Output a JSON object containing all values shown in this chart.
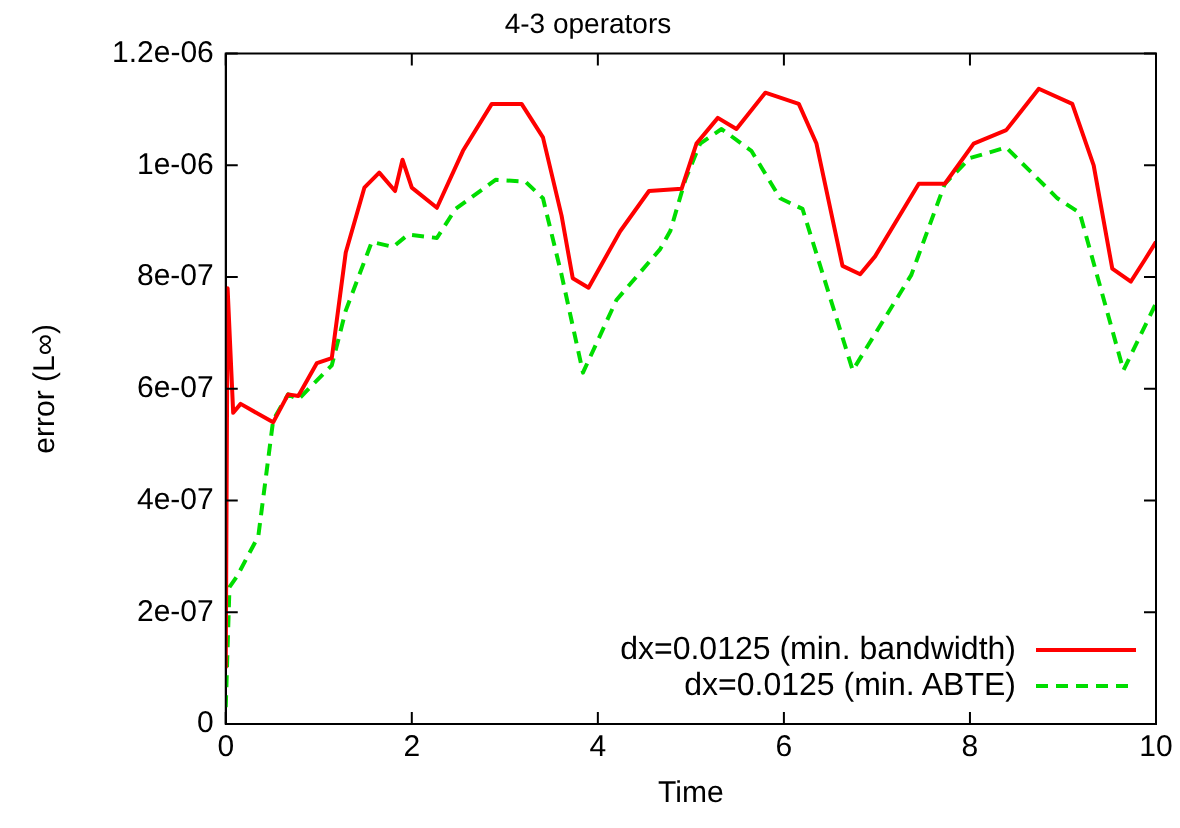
{
  "chart_data": {
    "type": "line",
    "title": "4-3 operators",
    "xlabel": "Time",
    "ylabel": "error (L∞)",
    "xlim": [
      0,
      10
    ],
    "xticks": [
      0,
      2,
      4,
      6,
      8,
      10
    ],
    "ylim": [
      0,
      1.2e-06
    ],
    "yticks": [
      {
        "value": 0,
        "label": "0"
      },
      {
        "value": 2e-07,
        "label": "2e-07"
      },
      {
        "value": 4e-07,
        "label": "4e-07"
      },
      {
        "value": 6e-07,
        "label": "6e-07"
      },
      {
        "value": 8e-07,
        "label": "8e-07"
      },
      {
        "value": 1e-06,
        "label": "1e-06"
      },
      {
        "value": 1.2e-06,
        "label": "1.2e-06"
      }
    ],
    "grid": false,
    "legend": "bottom right",
    "marker": "none",
    "series": [
      {
        "name": "dx=0.0125 (min. bandwidth)",
        "color": "#ff0000",
        "line_style": "solid",
        "x": [
          0,
          0.02,
          0.08,
          0.16,
          0.51,
          0.67,
          0.78,
          0.98,
          1.14,
          1.29,
          1.49,
          1.65,
          1.82,
          1.9,
          2.0,
          2.27,
          2.55,
          2.86,
          3.18,
          3.41,
          3.61,
          3.73,
          3.9,
          4.24,
          4.55,
          4.9,
          5.06,
          5.29,
          5.49,
          5.8,
          6.16,
          6.35,
          6.63,
          6.82,
          6.98,
          7.45,
          7.73,
          8.04,
          8.39,
          8.74,
          9.1,
          9.33,
          9.53,
          9.73,
          9.88,
          10
        ],
        "values": [
          1e-07,
          7.8e-07,
          5.57e-07,
          5.73e-07,
          5.4e-07,
          5.9e-07,
          5.87e-07,
          6.46e-07,
          6.55e-07,
          8.44e-07,
          9.6e-07,
          9.87e-07,
          9.54e-07,
          1.01e-06,
          9.6e-07,
          9.24e-07,
          1.026e-06,
          1.11e-06,
          1.11e-06,
          1.05e-06,
          9.1e-07,
          7.98e-07,
          7.81e-07,
          8.82e-07,
          9.54e-07,
          9.58e-07,
          1.039e-06,
          1.085e-06,
          1.065e-06,
          1.13e-06,
          1.11e-06,
          1.039e-06,
          8.2e-07,
          8.05e-07,
          8.37e-07,
          9.67e-07,
          9.67e-07,
          1.039e-06,
          1.063e-06,
          1.137e-06,
          1.11e-06,
          1e-06,
          8.15e-07,
          7.92e-07,
          8.31e-07,
          8.63e-07
        ]
      },
      {
        "name": "dx=0.0125 (min. ABTE)",
        "color": "#00dd00",
        "line_style": "dashed",
        "x": [
          0,
          0.04,
          0.12,
          0.35,
          0.51,
          0.67,
          0.78,
          1.14,
          1.29,
          1.57,
          1.8,
          1.96,
          2.27,
          2.47,
          2.9,
          3.22,
          3.41,
          3.61,
          3.84,
          4.2,
          4.67,
          4.78,
          4.94,
          5.1,
          5.33,
          5.65,
          5.96,
          6.2,
          6.74,
          7.37,
          7.73,
          8.0,
          8.39,
          8.94,
          9.18,
          9.65,
          10
        ],
        "values": [
          3e-08,
          2.45e-07,
          2.64e-07,
          3.36e-07,
          5.44e-07,
          5.9e-07,
          5.81e-07,
          6.42e-07,
          7.4e-07,
          8.63e-07,
          8.54e-07,
          8.76e-07,
          8.7e-07,
          9.22e-07,
          9.74e-07,
          9.71e-07,
          9.41e-07,
          8.04e-07,
          6.29e-07,
          7.59e-07,
          8.5e-07,
          8.83e-07,
          9.74e-07,
          1.039e-06,
          1.065e-06,
          1.026e-06,
          9.41e-07,
          9.22e-07,
          6.33e-07,
          8.04e-07,
          9.67e-07,
          1.013e-06,
          1.032e-06,
          9.41e-07,
          9.15e-07,
          6.33e-07,
          7.53e-07
        ]
      }
    ]
  }
}
